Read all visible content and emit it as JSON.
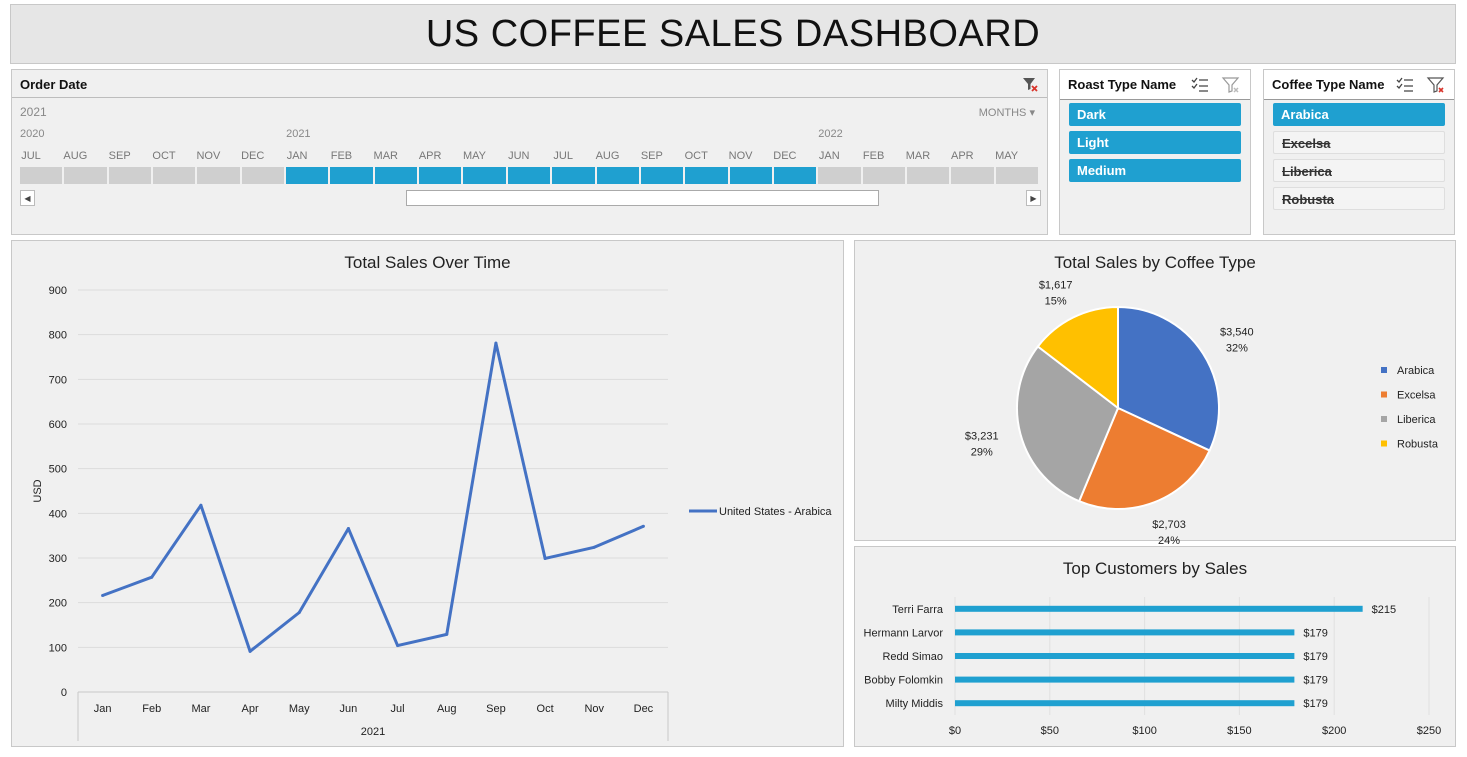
{
  "dashboard": {
    "title": "US COFFEE SALES DASHBOARD"
  },
  "timeline": {
    "title": "Order Date",
    "selected_range_label": "2021",
    "level": "MONTHS",
    "years": [
      {
        "label": "2020",
        "start_index": 0
      },
      {
        "label": "2021",
        "start_index": 6
      },
      {
        "label": "2022",
        "start_index": 18
      }
    ],
    "months": [
      "JUL",
      "AUG",
      "SEP",
      "OCT",
      "NOV",
      "DEC",
      "JAN",
      "FEB",
      "MAR",
      "APR",
      "MAY",
      "JUN",
      "JUL",
      "AUG",
      "SEP",
      "OCT",
      "NOV",
      "DEC",
      "JAN",
      "FEB",
      "MAR",
      "APR",
      "MAY"
    ],
    "selected": [
      false,
      false,
      false,
      false,
      false,
      false,
      true,
      true,
      true,
      true,
      true,
      true,
      true,
      true,
      true,
      true,
      true,
      true,
      false,
      false,
      false,
      false,
      false
    ]
  },
  "roast_slicer": {
    "title": "Roast Type Name",
    "items": [
      {
        "label": "Dark",
        "selected": true
      },
      {
        "label": "Light",
        "selected": true
      },
      {
        "label": "Medium",
        "selected": true
      }
    ]
  },
  "coffee_slicer": {
    "title": "Coffee Type Name",
    "items": [
      {
        "label": "Arabica",
        "selected": true
      },
      {
        "label": "Excelsa",
        "selected": false
      },
      {
        "label": "Liberica",
        "selected": false
      },
      {
        "label": "Robusta",
        "selected": false
      }
    ]
  },
  "colors": {
    "accent": "#1fa0d0",
    "line": "#4472c4",
    "arabica": "#4472c4",
    "excelsa": "#ed7d31",
    "liberica": "#a5a5a5",
    "robusta": "#ffc000",
    "bar": "#1fa0d0"
  },
  "chart_data": [
    {
      "type": "line",
      "title": "Total Sales Over Time",
      "xlabel": "2021",
      "ylabel": "USD",
      "categories": [
        "Jan",
        "Feb",
        "Mar",
        "Apr",
        "May",
        "Jun",
        "Jul",
        "Aug",
        "Sep",
        "Oct",
        "Nov",
        "Dec"
      ],
      "series": [
        {
          "name": "United States - Arabica",
          "values": [
            216,
            257,
            418,
            91,
            178,
            366,
            104,
            129,
            781,
            299,
            324,
            371
          ]
        }
      ],
      "ylim": [
        0,
        900
      ],
      "yticks": [
        0,
        100,
        200,
        300,
        400,
        500,
        600,
        700,
        800,
        900
      ],
      "grid": true,
      "legend": "right"
    },
    {
      "type": "pie",
      "title": "Total Sales by Coffee Type",
      "slices": [
        {
          "label": "Arabica",
          "value": 3540,
          "value_label": "$3,540",
          "percent_label": "32%"
        },
        {
          "label": "Excelsa",
          "value": 2703,
          "value_label": "$2,703",
          "percent_label": "24%"
        },
        {
          "label": "Liberica",
          "value": 3231,
          "value_label": "$3,231",
          "percent_label": "29%"
        },
        {
          "label": "Robusta",
          "value": 1617,
          "value_label": "$1,617",
          "percent_label": "15%"
        }
      ],
      "legend": "right"
    },
    {
      "type": "bar",
      "orientation": "horizontal",
      "title": "Top Customers by Sales",
      "categories": [
        "Terri Farra",
        "Hermann Larvor",
        "Redd Simao",
        "Bobby Folomkin",
        "Milty Middis"
      ],
      "values": [
        215,
        179,
        179,
        179,
        179
      ],
      "value_labels": [
        "$215",
        "$179",
        "$179",
        "$179",
        "$179"
      ],
      "xlim": [
        0,
        250
      ],
      "xticks": [
        0,
        50,
        100,
        150,
        200,
        250
      ],
      "xtick_labels": [
        "$0",
        "$50",
        "$100",
        "$150",
        "$200",
        "$250"
      ],
      "grid": true
    }
  ]
}
